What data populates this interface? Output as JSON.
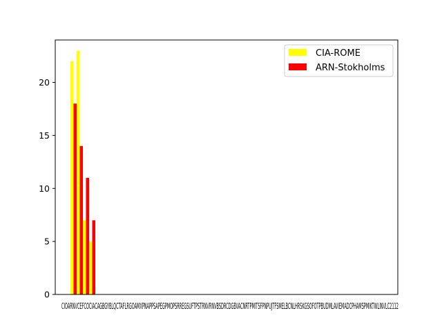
{
  "chart_data": {
    "type": "bar",
    "title": "",
    "xlabel": "",
    "ylabel": "",
    "ylim": [
      0,
      24
    ],
    "yticks": [
      0,
      5,
      10,
      15,
      20
    ],
    "grid": false,
    "legend_position": "top-right",
    "categories": [
      "CIO",
      "CIA",
      "ARN",
      "VCE"
    ],
    "x_tick_labels_overlapping": "CIOARNVCEFCOCIACAGBGYBLQCTAFLRGOAMXPNAPPSAPEGPMOPSRREGSUFTPSTRNVRNVBSDRCDGBVACNRTPMITSFPNPUJTFSMELBCNLHRSKGSOFOTPBUDMLAVIEMADCPHAMSPMIKTWLINVLC2112",
    "series": [
      {
        "name": "CIA-ROME",
        "color": "#ffff00",
        "values": [
          22,
          23,
          7,
          5
        ]
      },
      {
        "name": "ARN-Stokholms",
        "color": "#ff0000",
        "values": [
          18,
          14,
          11,
          7
        ]
      }
    ]
  }
}
